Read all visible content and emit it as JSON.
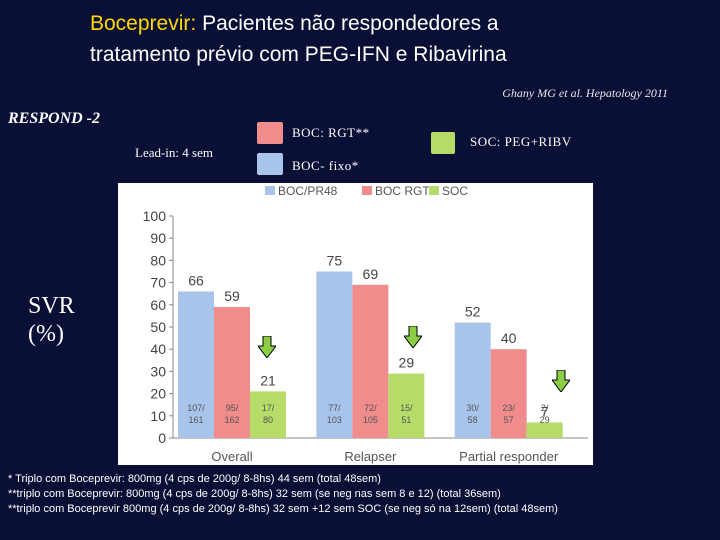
{
  "title": {
    "highlight": "Boceprevir:",
    "rest_line1": "Pacientes não respondedores a",
    "line2": "tratamento prévio com PEG-IFN e Ribavirina"
  },
  "citation": "Ghany MG et al. Hepatology 2011",
  "study": "RESPOND -2",
  "lead_in": "Lead-in: 4 sem",
  "outer_legend": {
    "boc_rgt": "BOC: RGT**",
    "boc_fixo": "BOC- fixo*",
    "soc": "SOC: PEG+RIBV"
  },
  "y_title": [
    "SVR",
    "(%)"
  ],
  "colors": {
    "boc_pr48": "#a9c4eb",
    "boc_rgt": "#f08c8c",
    "soc": "#b5dc68",
    "arrow_fill": "#8ccd45"
  },
  "chart_data": {
    "type": "bar",
    "categories": [
      "Overall",
      "Relapser",
      "Partial responder"
    ],
    "series": [
      {
        "name": "BOC/PR48",
        "values": [
          66,
          75,
          52
        ],
        "counts": [
          "107/161",
          "77/103",
          "30/58"
        ]
      },
      {
        "name": "BOC RGT",
        "values": [
          59,
          69,
          40
        ],
        "counts": [
          "95/162",
          "72/105",
          "23/57"
        ]
      },
      {
        "name": "SOC",
        "values": [
          21,
          29,
          7
        ],
        "counts": [
          "17/80",
          "15/51",
          "2/29"
        ]
      }
    ],
    "ylim": [
      0,
      100
    ],
    "yticks": [
      0,
      10,
      20,
      30,
      40,
      50,
      60,
      70,
      80,
      90,
      100
    ],
    "ylabel": "SVR (%)",
    "legend_position": "top"
  },
  "footnotes": [
    "* Triplo com Boceprevir: 800mg (4 cps de 200g/ 8-8hs) 44 sem (total 48sem)",
    "**triplo com Boceprevir: 800mg (4 cps de 200g/ 8-8hs) 32 sem (se neg nas sem 8 e 12) (total 36sem)",
    "**triplo com Boceprevir 800mg (4 cps de 200g/ 8-8hs) 32 sem +12 sem SOC (se neg só na 12sem) (total 48sem)"
  ]
}
